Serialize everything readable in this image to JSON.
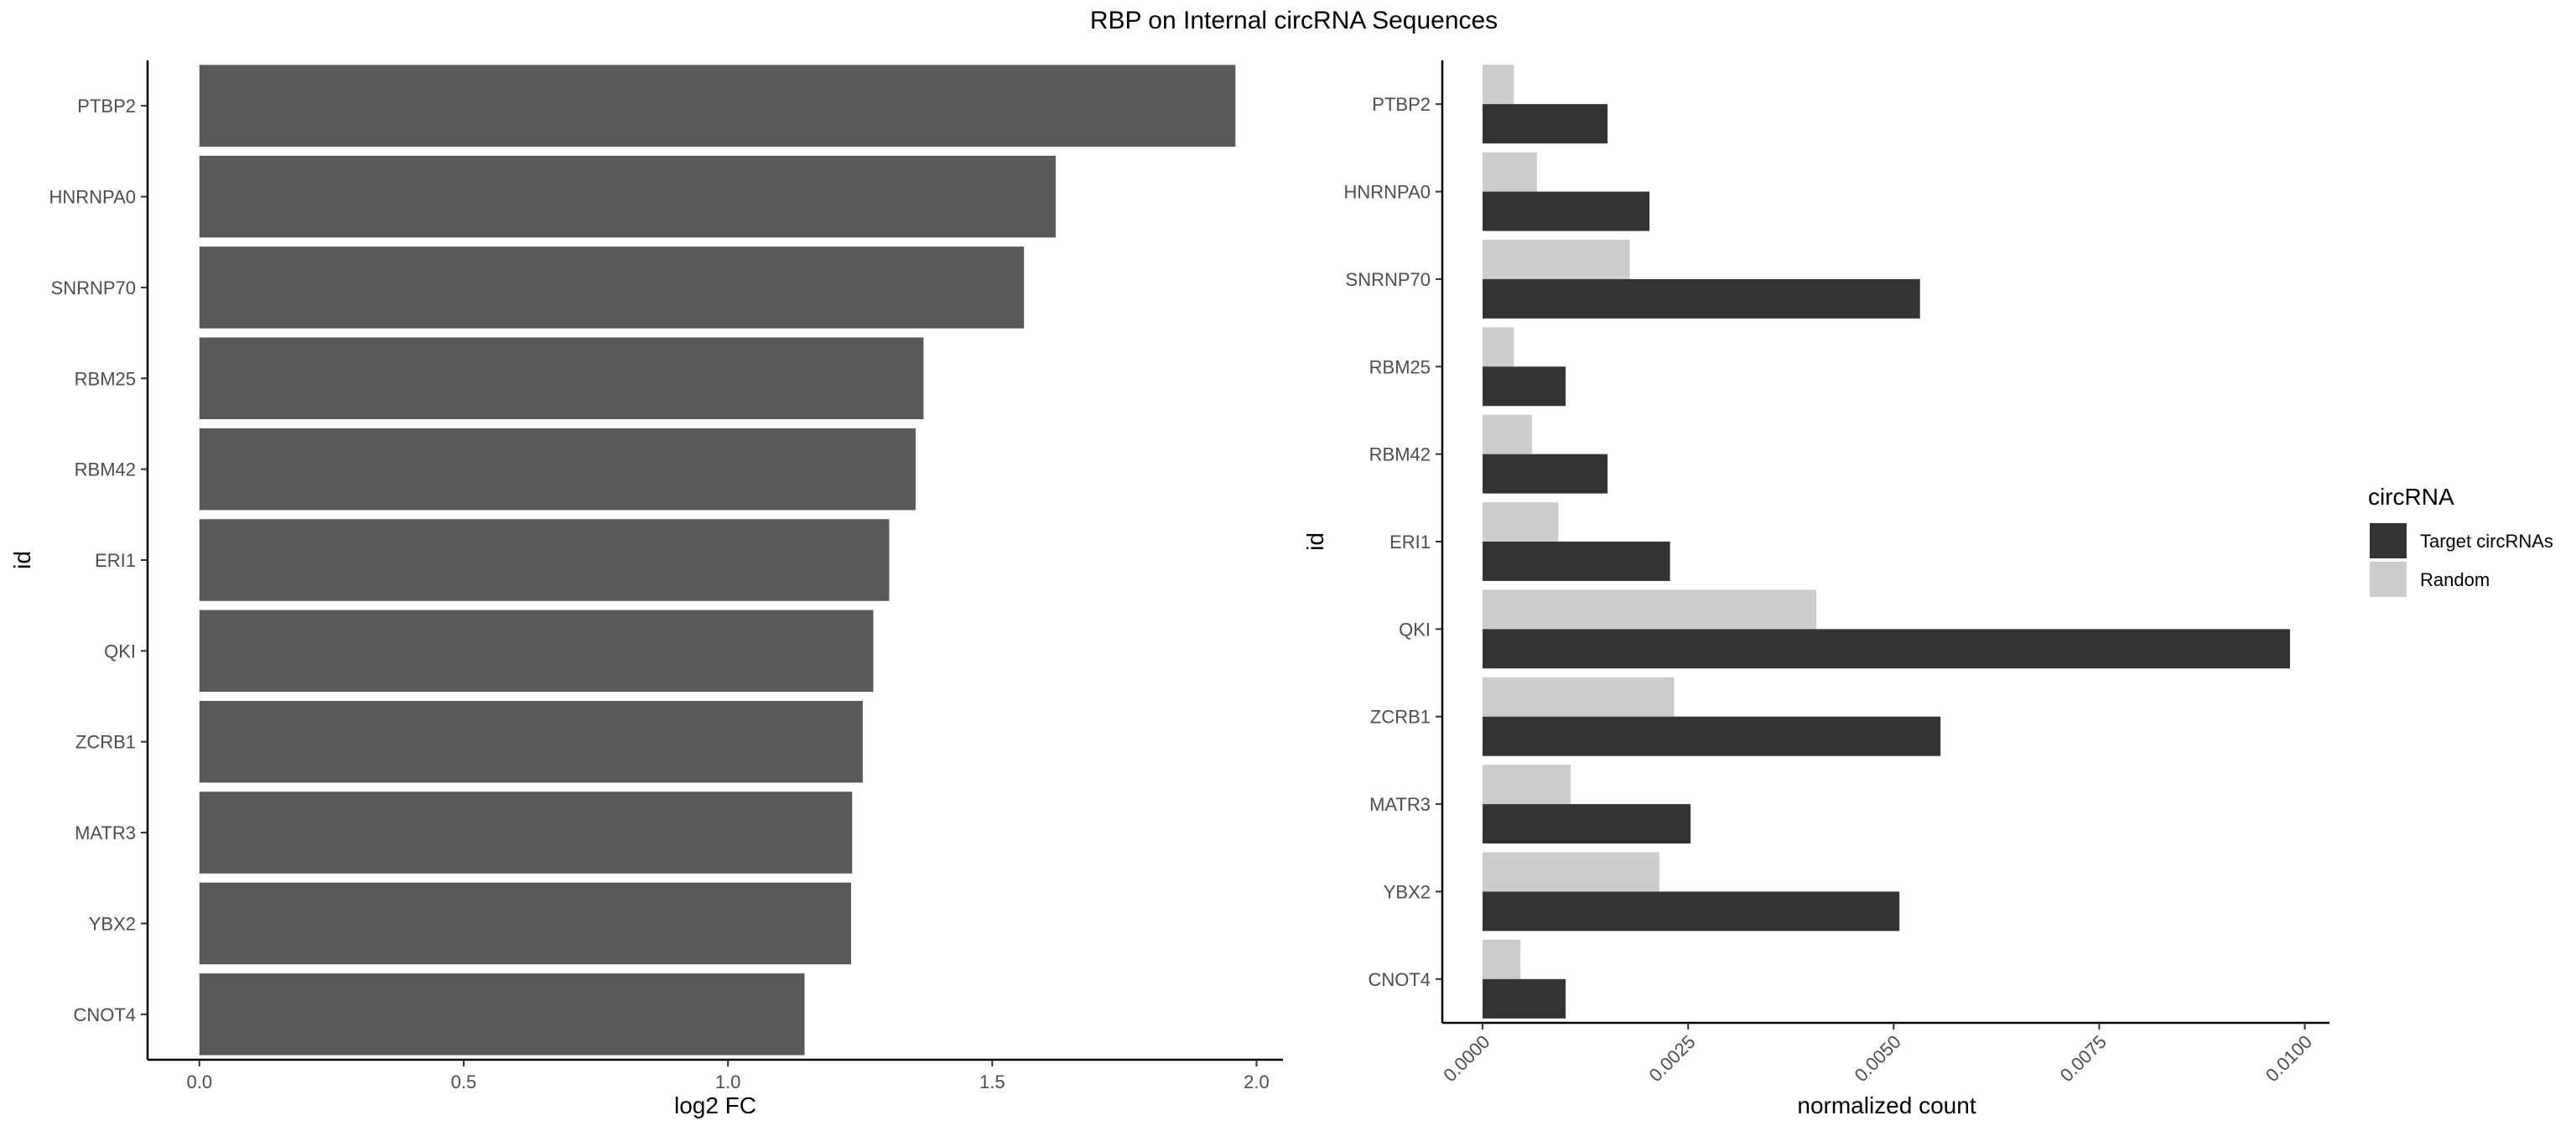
{
  "title": "RBP on Internal circRNA Sequences",
  "colors": {
    "bar_left": "#595959",
    "target": "#333333",
    "random": "#cccccc",
    "axis": "#000000",
    "tick_text": "#4d4d4d"
  },
  "chart_data": [
    {
      "type": "bar",
      "orientation": "horizontal",
      "categories": [
        "PTBP2",
        "HNRNPA0",
        "SNRNP70",
        "RBM25",
        "RBM42",
        "ERI1",
        "QKI",
        "ZCRB1",
        "MATR3",
        "YBX2",
        "CNOT4"
      ],
      "values": [
        1.96,
        1.62,
        1.56,
        1.37,
        1.355,
        1.305,
        1.275,
        1.255,
        1.235,
        1.233,
        1.145
      ],
      "xlabel": "log2 FC",
      "ylabel": "id",
      "xlim": [
        -0.098,
        2.05
      ],
      "xticks": [
        0,
        0.5,
        1,
        1.5,
        2
      ],
      "xtick_labels": [
        "0.0",
        "0.5",
        "1.0",
        "1.5",
        "2.0"
      ],
      "grid": false
    },
    {
      "type": "bar",
      "orientation": "horizontal",
      "categories": [
        "PTBP2",
        "HNRNPA0",
        "SNRNP70",
        "RBM25",
        "RBM42",
        "ERI1",
        "QKI",
        "ZCRB1",
        "MATR3",
        "YBX2",
        "CNOT4"
      ],
      "series": [
        {
          "name": "Target circRNAs",
          "values": [
            0.00152,
            0.00203,
            0.00532,
            0.00101,
            0.00152,
            0.00228,
            0.00982,
            0.00557,
            0.00253,
            0.00507,
            0.00101
          ]
        },
        {
          "name": "Random",
          "values": [
            0.00038,
            0.00066,
            0.00179,
            0.00038,
            0.0006,
            0.00092,
            0.00406,
            0.00233,
            0.00107,
            0.00215,
            0.00046
          ]
        }
      ],
      "xlabel": "normalized count",
      "ylabel": "id",
      "xlim": [
        -0.00049,
        0.0103
      ],
      "xticks": [
        0,
        0.0025,
        0.005,
        0.0075,
        0.01
      ],
      "xtick_labels": [
        "0.0000",
        "0.0025",
        "0.0050",
        "0.0075",
        "0.0100"
      ],
      "legend_title": "circRNA",
      "legend_position": "right",
      "grid": false
    }
  ]
}
